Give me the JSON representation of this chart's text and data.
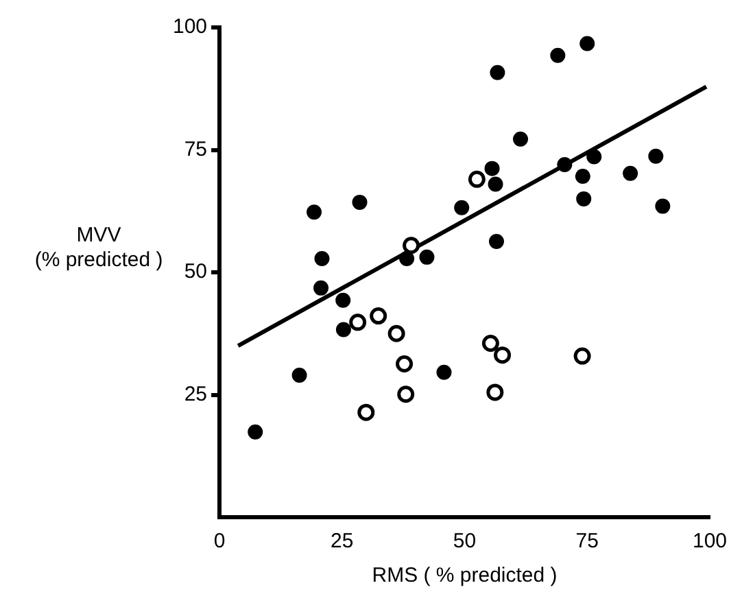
{
  "chart_data": {
    "type": "scatter",
    "xlabel": "RMS ( % predicted )",
    "ylabel": "MVV (% predicted )",
    "xlim": [
      0,
      100
    ],
    "xticks": [
      0,
      25,
      50,
      75,
      100
    ],
    "ylim": [
      0,
      100
    ],
    "yticks": [
      25,
      50,
      75,
      100
    ],
    "grid": false,
    "legend": false,
    "marker": "circle",
    "series": [
      {
        "color": "#000000",
        "x": [
          19.3,
          20.9,
          20.7,
          25.2,
          28.6,
          38.2,
          42.3,
          49.4,
          55.6,
          56.3,
          56.5,
          56.7,
          61.4,
          69.0,
          70.4,
          75.0,
          74.1,
          76.4,
          74.3,
          83.8,
          89.0,
          90.4,
          25.3,
          16.3,
          7.3,
          45.8
        ],
        "values": [
          62.3,
          52.8,
          46.8,
          44.3,
          64.3,
          52.8,
          53.1,
          63.2,
          71.2,
          68.0,
          56.3,
          90.8,
          77.2,
          94.3,
          72.0,
          96.7,
          69.6,
          73.6,
          65.0,
          70.2,
          73.7,
          63.5,
          38.3,
          29.0,
          17.4,
          29.6
        ]
      },
      {
        "color": "#ffffff",
        "x": [
          52.5,
          39.1,
          28.2,
          32.4,
          36.1,
          37.7,
          38.0,
          29.9,
          55.3,
          57.7,
          56.2,
          74.0
        ],
        "values": [
          69.0,
          55.5,
          39.8,
          41.1,
          37.5,
          31.3,
          25.1,
          21.4,
          35.5,
          33.1,
          25.5,
          32.9
        ]
      },
      {
        "type": "line",
        "color": "#000000",
        "marker": "none",
        "line_style": "solid",
        "x": [
          3.8,
          99.3
        ],
        "values": [
          35.0,
          87.9
        ]
      }
    ]
  }
}
